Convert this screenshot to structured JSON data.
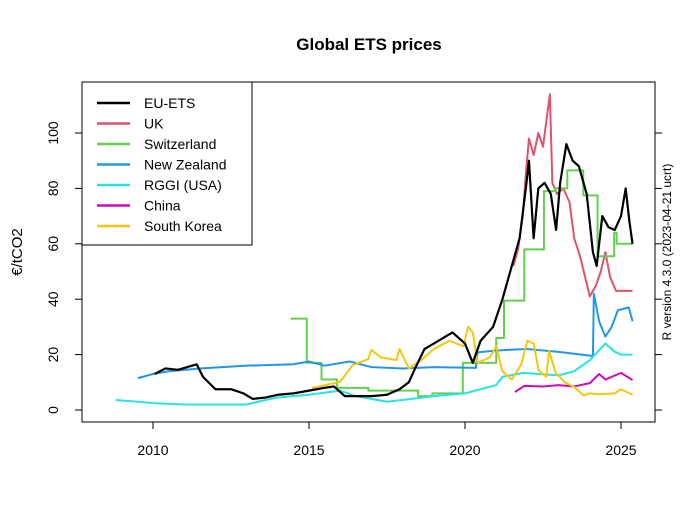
{
  "chart_data": {
    "type": "line",
    "title": "Global ETS prices",
    "xlabel": "",
    "ylabel": "€/tCO2",
    "side_note": "R version 4.3.0 (2023-04-21 ucrt)",
    "xlim": [
      2007.7,
      2026.1
    ],
    "ylim": [
      -4,
      118
    ],
    "x_ticks": [
      "2010",
      "2015",
      "2020",
      "2025"
    ],
    "y_ticks": [
      "0",
      "20",
      "40",
      "60",
      "80",
      "100"
    ],
    "grid": false,
    "legend_position": "top-left",
    "series": [
      {
        "name": "EU-ETS",
        "color": "#000000",
        "step": false,
        "points": [
          [
            2010.05,
            13
          ],
          [
            2010.4,
            15
          ],
          [
            2010.8,
            14.5
          ],
          [
            2011.1,
            15.5
          ],
          [
            2011.4,
            16.5
          ],
          [
            2011.6,
            12
          ],
          [
            2012.0,
            7.5
          ],
          [
            2012.5,
            7.5
          ],
          [
            2012.9,
            6
          ],
          [
            2013.2,
            4
          ],
          [
            2013.6,
            4.5
          ],
          [
            2014.0,
            5.5
          ],
          [
            2014.5,
            6
          ],
          [
            2015.0,
            7
          ],
          [
            2015.5,
            8
          ],
          [
            2015.8,
            8.5
          ],
          [
            2016.15,
            5
          ],
          [
            2016.5,
            5
          ],
          [
            2017.0,
            5
          ],
          [
            2017.5,
            5.5
          ],
          [
            2017.9,
            7.5
          ],
          [
            2018.2,
            10
          ],
          [
            2018.4,
            15
          ],
          [
            2018.7,
            22
          ],
          [
            2019.0,
            24
          ],
          [
            2019.3,
            26
          ],
          [
            2019.6,
            28
          ],
          [
            2020.0,
            24
          ],
          [
            2020.25,
            17
          ],
          [
            2020.5,
            25
          ],
          [
            2020.9,
            30
          ],
          [
            2021.2,
            40
          ],
          [
            2021.5,
            52
          ],
          [
            2021.75,
            62
          ],
          [
            2021.95,
            80
          ],
          [
            2022.05,
            90
          ],
          [
            2022.2,
            62
          ],
          [
            2022.35,
            80
          ],
          [
            2022.55,
            82
          ],
          [
            2022.75,
            78
          ],
          [
            2022.92,
            65
          ],
          [
            2023.05,
            82
          ],
          [
            2023.25,
            96
          ],
          [
            2023.45,
            90
          ],
          [
            2023.65,
            88
          ],
          [
            2023.9,
            78
          ],
          [
            2024.1,
            57
          ],
          [
            2024.22,
            52
          ],
          [
            2024.4,
            70
          ],
          [
            2024.6,
            66
          ],
          [
            2024.8,
            65
          ],
          [
            2025.0,
            70
          ],
          [
            2025.15,
            80
          ],
          [
            2025.27,
            68
          ],
          [
            2025.37,
            60
          ]
        ]
      },
      {
        "name": "UK",
        "color": "#DF536B",
        "step": false,
        "points": [
          [
            2021.55,
            52
          ],
          [
            2021.7,
            58
          ],
          [
            2021.85,
            70
          ],
          [
            2021.95,
            85
          ],
          [
            2022.05,
            98
          ],
          [
            2022.2,
            92
          ],
          [
            2022.35,
            100
          ],
          [
            2022.5,
            95
          ],
          [
            2022.65,
            108
          ],
          [
            2022.72,
            114
          ],
          [
            2022.8,
            82
          ],
          [
            2022.95,
            78
          ],
          [
            2023.15,
            80
          ],
          [
            2023.35,
            75
          ],
          [
            2023.5,
            62
          ],
          [
            2023.7,
            55
          ],
          [
            2023.85,
            48
          ],
          [
            2024.0,
            41
          ],
          [
            2024.2,
            45
          ],
          [
            2024.35,
            50
          ],
          [
            2024.5,
            57
          ],
          [
            2024.65,
            48
          ],
          [
            2024.84,
            43
          ],
          [
            2025.37,
            43
          ]
        ]
      },
      {
        "name": "Switzerland",
        "color": "#61D04F",
        "step": true,
        "points": [
          [
            2014.41,
            33
          ],
          [
            2014.93,
            17
          ],
          [
            2015.4,
            11
          ],
          [
            2015.9,
            8
          ],
          [
            2016.9,
            7
          ],
          [
            2018.5,
            5
          ],
          [
            2018.95,
            6
          ],
          [
            2019.93,
            17
          ],
          [
            2021.0,
            26
          ],
          [
            2021.25,
            39.5
          ],
          [
            2021.9,
            58
          ],
          [
            2022.53,
            79
          ],
          [
            2022.9,
            80
          ],
          [
            2023.28,
            86.5
          ],
          [
            2023.79,
            77.5
          ],
          [
            2024.25,
            55.5
          ],
          [
            2024.78,
            64
          ],
          [
            2024.86,
            60
          ],
          [
            2025.37,
            60
          ]
        ]
      },
      {
        "name": "New Zealand",
        "color": "#2297E6",
        "step": false,
        "points": [
          [
            2009.52,
            11.5
          ],
          [
            2010.0,
            13
          ],
          [
            2010.5,
            14
          ],
          [
            2011.5,
            15
          ],
          [
            2013.0,
            16
          ],
          [
            2014.5,
            16.5
          ],
          [
            2015.0,
            17.5
          ],
          [
            2015.5,
            16
          ],
          [
            2016.3,
            17.5
          ],
          [
            2017.0,
            15.5
          ],
          [
            2018.0,
            15
          ],
          [
            2019.0,
            15.5
          ],
          [
            2020.35,
            15.2
          ],
          [
            2020.4,
            20.8
          ],
          [
            2021.0,
            21.5
          ],
          [
            2022.0,
            22
          ],
          [
            2023.0,
            21
          ],
          [
            2024.1,
            19.5
          ],
          [
            2024.13,
            42
          ],
          [
            2024.3,
            32
          ],
          [
            2024.5,
            26.5
          ],
          [
            2024.7,
            30
          ],
          [
            2024.9,
            36
          ],
          [
            2025.25,
            37
          ],
          [
            2025.37,
            32
          ]
        ]
      },
      {
        "name": "RGGI (USA)",
        "color": "#28E2E5",
        "step": false,
        "points": [
          [
            2008.8,
            3.6
          ],
          [
            2009.5,
            3
          ],
          [
            2010.0,
            2.5
          ],
          [
            2011.0,
            2
          ],
          [
            2012.0,
            2
          ],
          [
            2013.0,
            2
          ],
          [
            2013.6,
            3.6
          ],
          [
            2014.0,
            4.5
          ],
          [
            2015.0,
            5.5
          ],
          [
            2016.0,
            7
          ],
          [
            2016.5,
            5
          ],
          [
            2017.5,
            3
          ],
          [
            2018.0,
            3.6
          ],
          [
            2019.0,
            5
          ],
          [
            2020.0,
            6
          ],
          [
            2021.0,
            9
          ],
          [
            2021.2,
            12
          ],
          [
            2021.86,
            13.4
          ],
          [
            2023.0,
            12.5
          ],
          [
            2023.5,
            14
          ],
          [
            2024.0,
            18
          ],
          [
            2024.5,
            24
          ],
          [
            2024.8,
            21
          ],
          [
            2025.0,
            20
          ],
          [
            2025.37,
            20
          ]
        ]
      },
      {
        "name": "China",
        "color": "#CD0BBC",
        "step": false,
        "points": [
          [
            2021.6,
            6.5
          ],
          [
            2021.9,
            8.7
          ],
          [
            2022.5,
            8.5
          ],
          [
            2023.0,
            9
          ],
          [
            2023.5,
            8.5
          ],
          [
            2024.0,
            9.7
          ],
          [
            2024.3,
            13
          ],
          [
            2024.5,
            11
          ],
          [
            2025.0,
            13.4
          ],
          [
            2025.37,
            10.8
          ]
        ]
      },
      {
        "name": "South Korea",
        "color": "#F5C710",
        "step": false,
        "points": [
          [
            2015.09,
            7.9
          ],
          [
            2016.0,
            10.2
          ],
          [
            2016.4,
            16.2
          ],
          [
            2016.9,
            18.4
          ],
          [
            2017.0,
            21.7
          ],
          [
            2017.3,
            19
          ],
          [
            2017.8,
            18
          ],
          [
            2017.9,
            22
          ],
          [
            2018.2,
            15
          ],
          [
            2018.6,
            18
          ],
          [
            2019.0,
            22
          ],
          [
            2019.5,
            25
          ],
          [
            2019.95,
            23
          ],
          [
            2020.1,
            30
          ],
          [
            2020.25,
            28
          ],
          [
            2020.4,
            17
          ],
          [
            2020.8,
            19
          ],
          [
            2021.0,
            23
          ],
          [
            2021.2,
            14
          ],
          [
            2021.5,
            11
          ],
          [
            2021.8,
            16.4
          ],
          [
            2022.0,
            25
          ],
          [
            2022.2,
            24
          ],
          [
            2022.36,
            14.4
          ],
          [
            2022.6,
            12
          ],
          [
            2022.7,
            21.3
          ],
          [
            2022.9,
            13.6
          ],
          [
            2023.2,
            10
          ],
          [
            2023.5,
            8.3
          ],
          [
            2023.8,
            5.3
          ],
          [
            2024.0,
            6
          ],
          [
            2024.3,
            5.7
          ],
          [
            2024.8,
            6
          ],
          [
            2025.0,
            7.5
          ],
          [
            2025.37,
            5.5
          ]
        ]
      }
    ]
  }
}
